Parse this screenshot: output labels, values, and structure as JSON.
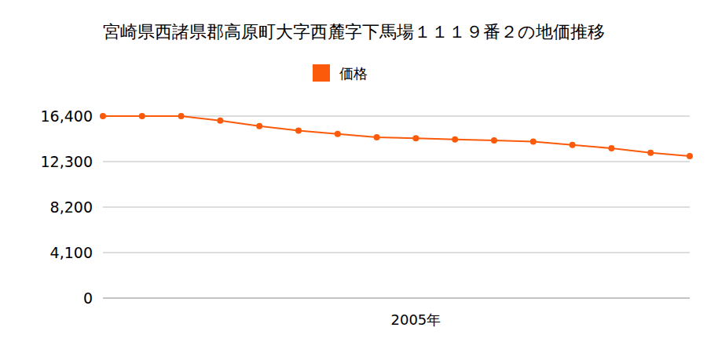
{
  "chart_data": {
    "type": "line",
    "title": "宮崎県西諸県郡高原町大字西麓字下馬場１１１９番２の地価推移",
    "categories": [
      null,
      null,
      null,
      null,
      null,
      null,
      null,
      null,
      "2005年",
      null,
      null,
      null,
      null,
      null,
      null,
      null
    ],
    "series": [
      {
        "name": "価格",
        "color": "#fa5a0a",
        "marker": "circle",
        "values": [
          16400,
          16400,
          16400,
          16000,
          15500,
          15100,
          14800,
          14500,
          14400,
          14300,
          14200,
          14100,
          13800,
          13500,
          13100,
          12800
        ]
      }
    ],
    "ylim": [
      0,
      16400
    ],
    "yticks": [
      {
        "value": 0,
        "label": "0"
      },
      {
        "value": 4100,
        "label": "4,100"
      },
      {
        "value": 8200,
        "label": "8,200"
      },
      {
        "value": 12300,
        "label": "12,300"
      },
      {
        "value": 16400,
        "label": "16,400"
      }
    ],
    "grid": true,
    "legend": "top"
  }
}
